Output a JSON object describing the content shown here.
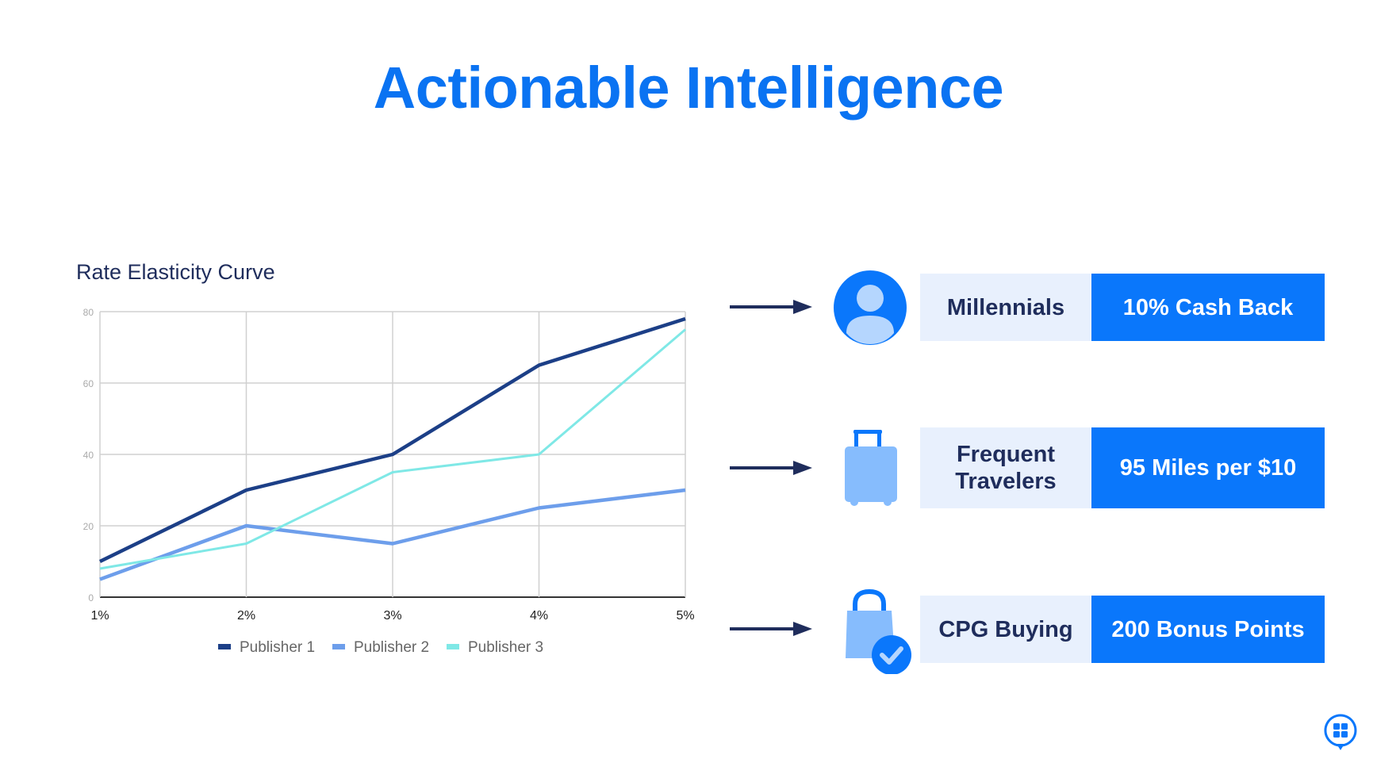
{
  "header": {
    "title": "Actionable Intelligence"
  },
  "colors": {
    "accent": "#0a77fb",
    "navy": "#1f2d5c",
    "segment_bg": "#e8f0fd",
    "icon_light": "#86bcfd"
  },
  "chart_data": {
    "type": "line",
    "title": "Rate Elasticity Curve",
    "categories": [
      "1%",
      "2%",
      "3%",
      "4%",
      "5%"
    ],
    "ylim": [
      0,
      80
    ],
    "yticks": [
      "0",
      "20",
      "40",
      "60",
      "80"
    ],
    "grid": true,
    "legend_position": "bottom",
    "series": [
      {
        "name": "Publisher 1",
        "color": "#1c3f87",
        "values": [
          10,
          30,
          40,
          65,
          78
        ]
      },
      {
        "name": "Publisher 2",
        "color": "#6d9eeb",
        "values": [
          5,
          20,
          15,
          25,
          30
        ]
      },
      {
        "name": "Publisher 3",
        "color": "#7fe8e6",
        "values": [
          8,
          15,
          35,
          40,
          75
        ]
      }
    ]
  },
  "rows": [
    {
      "icon": "person-icon",
      "segment": "Millennials",
      "offer": "10% Cash Back"
    },
    {
      "icon": "suitcase-icon",
      "segment": "Frequent Travelers",
      "offer": "95 Miles per $10"
    },
    {
      "icon": "shopping-bag-check-icon",
      "segment": "CPG Buying",
      "offer": "200 Bonus Points"
    }
  ],
  "logo": "chat-bubble-grid-logo"
}
